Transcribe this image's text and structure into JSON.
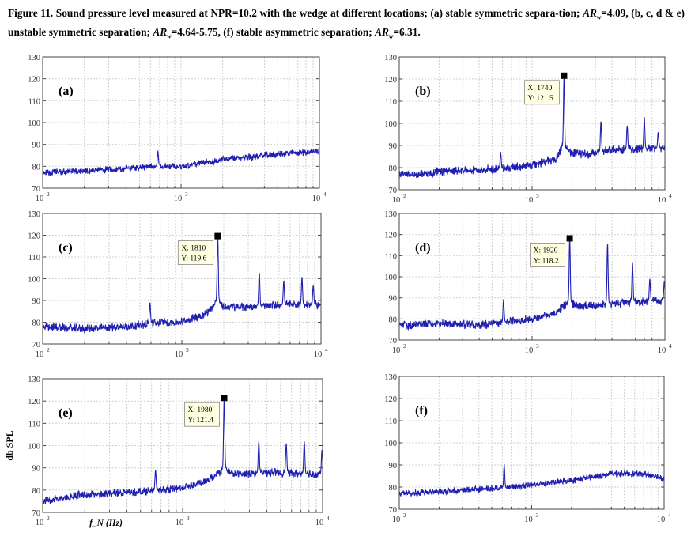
{
  "caption": {
    "part1": "Figure 11. Sound pressure level measured at NPR=10.2 with the wedge at different locations; (a) stable symmetric separa-tion; ",
    "ar": "AR",
    "sub": "w",
    "part2": "=4.09, (b, c, d & e) unstable symmetric separation; ",
    "part3": "=4.64-5.75, (f) stable asymmetric separation; ",
    "part4": "=6.31."
  },
  "axes_common": {
    "xscale": "log",
    "xlim": [
      100,
      10000
    ],
    "ylim": [
      70,
      130
    ],
    "yticks": [
      "70",
      "80",
      "90",
      "100",
      "110",
      "120",
      "130"
    ],
    "xticks": [
      {
        "base": "10",
        "exp": "2",
        "value": 100
      },
      {
        "base": "10",
        "exp": "3",
        "value": 1000
      },
      {
        "base": "10",
        "exp": "4",
        "value": 10000
      }
    ],
    "grid": true,
    "line_color": "#1f1fb0"
  },
  "chart_data": [
    {
      "type": "line",
      "panel_label": "(a)",
      "xlabel": "",
      "ylabel": "",
      "xscale": "log",
      "xlim": [
        100,
        10000
      ],
      "ylim": [
        70,
        130
      ],
      "baseline": [
        [
          100,
          77
        ],
        [
          200,
          78
        ],
        [
          400,
          79
        ],
        [
          700,
          80
        ],
        [
          1000,
          80
        ],
        [
          2000,
          83
        ],
        [
          4000,
          85
        ],
        [
          10000,
          87
        ]
      ],
      "peaks": [
        {
          "x": 680,
          "y": 87
        }
      ],
      "noise": 1.2,
      "datatip": null
    },
    {
      "type": "line",
      "panel_label": "(b)",
      "xlabel": "",
      "ylabel": "",
      "xscale": "log",
      "xlim": [
        100,
        10000
      ],
      "ylim": [
        70,
        130
      ],
      "baseline": [
        [
          100,
          77
        ],
        [
          200,
          78
        ],
        [
          400,
          79
        ],
        [
          700,
          80
        ],
        [
          1000,
          81
        ],
        [
          1500,
          84
        ],
        [
          1700,
          90
        ],
        [
          1900,
          87
        ],
        [
          2500,
          86
        ],
        [
          4000,
          88
        ],
        [
          10000,
          89
        ]
      ],
      "peaks": [
        {
          "x": 580,
          "y": 87
        },
        {
          "x": 1740,
          "y": 121.5
        },
        {
          "x": 3300,
          "y": 101
        },
        {
          "x": 5200,
          "y": 99
        },
        {
          "x": 7000,
          "y": 103
        },
        {
          "x": 8900,
          "y": 96
        }
      ],
      "noise": 1.5,
      "datatip": {
        "x": 1740,
        "y": 121.5,
        "x_label": "X: 1740",
        "y_label": "Y: 121.5"
      }
    },
    {
      "type": "line",
      "panel_label": "(c)",
      "xlabel": "",
      "ylabel": "",
      "xscale": "log",
      "xlim": [
        100,
        10000
      ],
      "ylim": [
        70,
        130
      ],
      "baseline": [
        [
          100,
          78
        ],
        [
          200,
          77
        ],
        [
          400,
          78
        ],
        [
          700,
          80
        ],
        [
          1000,
          80
        ],
        [
          1500,
          84
        ],
        [
          1800,
          90
        ],
        [
          2000,
          87
        ],
        [
          3000,
          87
        ],
        [
          5000,
          88
        ],
        [
          10000,
          88
        ]
      ],
      "peaks": [
        {
          "x": 590,
          "y": 89
        },
        {
          "x": 1810,
          "y": 119.6
        },
        {
          "x": 3600,
          "y": 103
        },
        {
          "x": 5400,
          "y": 99
        },
        {
          "x": 7300,
          "y": 101
        },
        {
          "x": 8800,
          "y": 97
        }
      ],
      "noise": 1.5,
      "datatip": {
        "x": 1810,
        "y": 119.6,
        "x_label": "X: 1810",
        "y_label": "Y: 119.6"
      }
    },
    {
      "type": "line",
      "panel_label": "(d)",
      "xlabel": "",
      "ylabel": "",
      "xscale": "log",
      "xlim": [
        100,
        10000
      ],
      "ylim": [
        70,
        130
      ],
      "baseline": [
        [
          100,
          77
        ],
        [
          200,
          78
        ],
        [
          400,
          77
        ],
        [
          700,
          79
        ],
        [
          1000,
          80
        ],
        [
          1500,
          83
        ],
        [
          1900,
          88
        ],
        [
          2200,
          86
        ],
        [
          3500,
          87
        ],
        [
          6000,
          88
        ],
        [
          10000,
          89
        ]
      ],
      "peaks": [
        {
          "x": 610,
          "y": 89
        },
        {
          "x": 1920,
          "y": 118.2
        },
        {
          "x": 3700,
          "y": 116
        },
        {
          "x": 5700,
          "y": 107
        },
        {
          "x": 7700,
          "y": 99
        },
        {
          "x": 9900,
          "y": 98
        }
      ],
      "noise": 1.5,
      "datatip": {
        "x": 1920,
        "y": 118.2,
        "x_label": "X: 1920",
        "y_label": "Y: 118.2"
      }
    },
    {
      "type": "line",
      "panel_label": "(e)",
      "xlabel": "f_N (Hz)",
      "ylabel": "db SPL",
      "xscale": "log",
      "xlim": [
        100,
        10000
      ],
      "ylim": [
        70,
        130
      ],
      "baseline": [
        [
          100,
          75
        ],
        [
          200,
          78
        ],
        [
          400,
          79
        ],
        [
          700,
          80
        ],
        [
          1000,
          81
        ],
        [
          1500,
          84
        ],
        [
          2000,
          90
        ],
        [
          2300,
          87
        ],
        [
          4000,
          88
        ],
        [
          10000,
          87
        ]
      ],
      "peaks": [
        {
          "x": 640,
          "y": 89
        },
        {
          "x": 1980,
          "y": 121.4
        },
        {
          "x": 3500,
          "y": 102
        },
        {
          "x": 5500,
          "y": 101
        },
        {
          "x": 7400,
          "y": 102
        },
        {
          "x": 9900,
          "y": 98
        }
      ],
      "noise": 1.4,
      "datatip": {
        "x": 1980,
        "y": 121.4,
        "x_label": "X: 1980",
        "y_label": "Y: 121.4"
      }
    },
    {
      "type": "line",
      "panel_label": "(f)",
      "xlabel": "",
      "ylabel": "",
      "xscale": "log",
      "xlim": [
        100,
        10000
      ],
      "ylim": [
        70,
        130
      ],
      "baseline": [
        [
          100,
          77
        ],
        [
          200,
          78
        ],
        [
          400,
          79
        ],
        [
          700,
          80
        ],
        [
          1000,
          81
        ],
        [
          2000,
          83
        ],
        [
          4000,
          86
        ],
        [
          7000,
          86
        ],
        [
          10000,
          84
        ]
      ],
      "peaks": [
        {
          "x": 620,
          "y": 90
        }
      ],
      "noise": 1.1,
      "datatip": null
    }
  ]
}
